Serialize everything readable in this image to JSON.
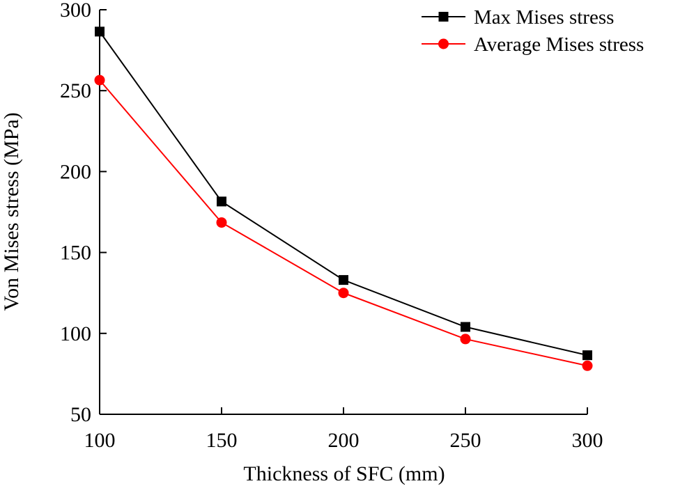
{
  "chart_data": {
    "type": "line",
    "title": "",
    "xlabel": "Thickness of SFC (mm)",
    "ylabel": "Von Mises stress (MPa)",
    "xlim": [
      100,
      300
    ],
    "ylim": [
      50,
      300
    ],
    "xticks": [
      100,
      150,
      200,
      250,
      300
    ],
    "yticks": [
      50,
      100,
      150,
      200,
      250,
      300
    ],
    "grid": false,
    "legend_position": "top-right",
    "x": [
      100,
      150,
      200,
      250,
      300
    ],
    "series": [
      {
        "name": "Max Mises stress",
        "values": [
          286.5,
          181.5,
          133,
          104,
          86.5
        ],
        "color": "#000000",
        "marker": "square"
      },
      {
        "name": "Average Mises stress",
        "values": [
          256.5,
          168.5,
          125,
          96.5,
          80
        ],
        "color": "#ff0000",
        "marker": "circle"
      }
    ]
  }
}
